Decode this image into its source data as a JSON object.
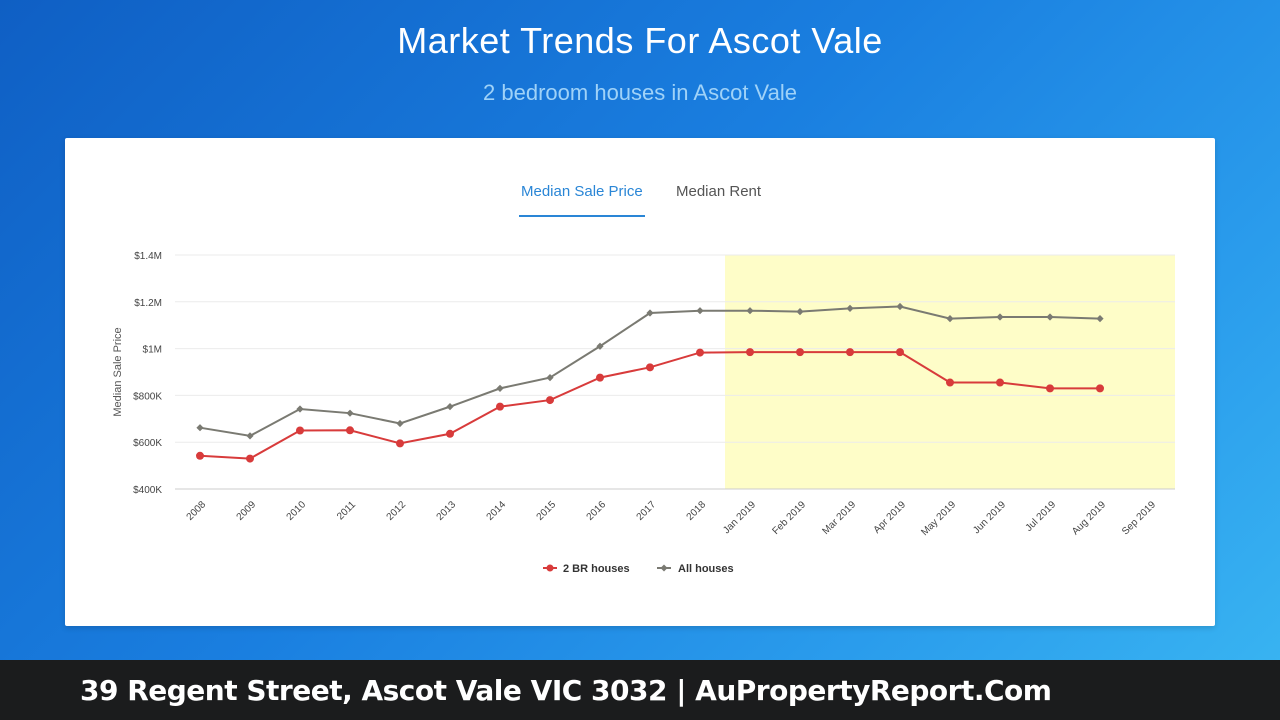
{
  "header": {
    "title": "Market Trends For Ascot Vale",
    "subtitle": "2 bedroom houses in Ascot Vale"
  },
  "tabs": [
    {
      "label": "Median Sale Price",
      "active": true
    },
    {
      "label": "Median Rent",
      "active": false
    }
  ],
  "footer": {
    "text": "39 Regent Street, Ascot Vale VIC 3032 | AuPropertyReport.Com"
  },
  "colors": {
    "series_2br": "#d83b3b",
    "series_all": "#7a7a72",
    "highlight": "#fefdc8",
    "active_tab": "#2a86d6"
  },
  "chart_data": {
    "type": "line",
    "ylabel": "Median Sale Price",
    "xlabel": "",
    "ylim": [
      400000,
      1400000
    ],
    "yticks": [
      400000,
      600000,
      800000,
      1000000,
      1200000,
      1400000
    ],
    "ytick_labels": [
      "$400K",
      "$600K",
      "$800K",
      "$1M",
      "$1.2M",
      "$1.4M"
    ],
    "categories": [
      "2008",
      "2009",
      "2010",
      "2011",
      "2012",
      "2013",
      "2014",
      "2015",
      "2016",
      "2017",
      "2018",
      "Jan 2019",
      "Feb 2019",
      "Mar 2019",
      "Apr 2019",
      "May 2019",
      "Jun 2019",
      "Jul 2019",
      "Aug 2019",
      "Sep 2019"
    ],
    "highlight_range": [
      "Jan 2019",
      "Sep 2019"
    ],
    "grid": true,
    "legend_position": "bottom-center",
    "series": [
      {
        "name": "2 BR houses",
        "values": [
          542000,
          530000,
          650000,
          651000,
          595000,
          636000,
          752000,
          780000,
          876000,
          920000,
          983000,
          985000,
          985000,
          985000,
          985000,
          855000,
          855000,
          830000,
          830000,
          null
        ]
      },
      {
        "name": "All houses",
        "values": [
          662000,
          627000,
          742000,
          724000,
          680000,
          752000,
          830000,
          876000,
          1010000,
          1152000,
          1162000,
          1162000,
          1158000,
          1172000,
          1180000,
          1128000,
          1135000,
          1135000,
          1128000,
          null
        ]
      }
    ]
  }
}
